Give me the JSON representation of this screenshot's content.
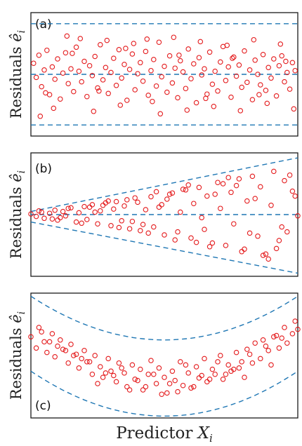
{
  "chart_data": [
    {
      "type": "scatter",
      "panel_label": "(a)",
      "ylabel": "Residuals ê_i",
      "xlabel": "",
      "xlim": [
        0,
        1
      ],
      "ylim": [
        -1.0,
        1.0
      ],
      "ticks": "none",
      "pattern": "constant variance",
      "guides": [
        {
          "kind": "horizontal",
          "y": 0.82
        },
        {
          "kind": "horizontal",
          "y": 0.0
        },
        {
          "kind": "horizontal",
          "y": -0.82
        }
      ],
      "point_color": "#e41a1c",
      "guide_color": "#1f77b4",
      "x": [
        0.01,
        0.02,
        0.03,
        0.04,
        0.05,
        0.06,
        0.07,
        0.08,
        0.09,
        0.1,
        0.11,
        0.12,
        0.13,
        0.14,
        0.15,
        0.16,
        0.17,
        0.18,
        0.19,
        0.2,
        0.21,
        0.22,
        0.23,
        0.24,
        0.25,
        0.26,
        0.27,
        0.28,
        0.29,
        0.3,
        0.31,
        0.32,
        0.33,
        0.34,
        0.35,
        0.36,
        0.37,
        0.38,
        0.39,
        0.4,
        0.41,
        0.42,
        0.43,
        0.44,
        0.45,
        0.46,
        0.47,
        0.48,
        0.49,
        0.5,
        0.51,
        0.52,
        0.53,
        0.54,
        0.55,
        0.56,
        0.57,
        0.58,
        0.59,
        0.6,
        0.61,
        0.62,
        0.63,
        0.64,
        0.65,
        0.66,
        0.67,
        0.68,
        0.69,
        0.7,
        0.71,
        0.72,
        0.73,
        0.74,
        0.75,
        0.76,
        0.77,
        0.78,
        0.79,
        0.8,
        0.81,
        0.82,
        0.83,
        0.84,
        0.85,
        0.86,
        0.87,
        0.88,
        0.89,
        0.9,
        0.91,
        0.92,
        0.93,
        0.94,
        0.95,
        0.96,
        0.97,
        0.98,
        0.99,
        0.035,
        0.085,
        0.135,
        0.185,
        0.235,
        0.285,
        0.335,
        0.385,
        0.435,
        0.485,
        0.535,
        0.585,
        0.635,
        0.685,
        0.735,
        0.785,
        0.835,
        0.885,
        0.935,
        0.985,
        0.055,
        0.155,
        0.255,
        0.355,
        0.455,
        0.555,
        0.655,
        0.755,
        0.855,
        0.955
      ],
      "y": [
        0.18,
        -0.05,
        0.31,
        -0.2,
        0.07,
        0.39,
        -0.33,
        0.12,
        -0.08,
        0.25,
        -0.4,
        0.02,
        0.35,
        -0.15,
        0.09,
        -0.28,
        0.44,
        0.05,
        -0.12,
        0.21,
        -0.36,
        0.14,
        -0.02,
        0.29,
        -0.22,
        0.48,
        -0.09,
        0.11,
        -0.31,
        0.03,
        0.26,
        -0.18,
        0.4,
        -0.06,
        0.16,
        -0.42,
        0.08,
        0.33,
        -0.25,
        0.01,
        0.19,
        -0.11,
        0.37,
        -0.34,
        0.06,
        0.24,
        -0.19,
        0.52,
        -0.04,
        0.13,
        -0.29,
        0.3,
        -0.14,
        0.1,
        -0.38,
        0.22,
        0.04,
        -0.23,
        0.41,
        -0.07,
        0.17,
        -0.46,
        0.27,
        -0.01,
        0.09,
        -0.32,
        0.36,
        -0.16,
        0.05,
        -0.27,
        0.2,
        0.45,
        -0.1,
        0.12,
        -0.37,
        0.28,
        -0.03,
        0.15,
        -0.21,
        0.38,
        -0.13,
        0.07,
        -0.41,
        0.23,
        0.0,
        -0.17,
        0.32,
        -0.26,
        0.11,
        -0.06,
        0.25,
        -0.35,
        0.14,
        0.3,
        -0.12,
        0.03,
        -0.24,
        0.19,
        0.06,
        -0.68,
        -0.55,
        0.62,
        0.58,
        -0.6,
        0.55,
        -0.5,
        0.5,
        0.57,
        -0.64,
        0.6,
        -0.58,
        0.53,
        -0.52,
        0.47,
        -0.59,
        0.56,
        -0.47,
        0.49,
        -0.56,
        -0.3,
        0.34,
        -0.27,
        0.42,
        -0.44,
        0.31,
        -0.39,
        0.26,
        -0.33,
        0.21
      ]
    },
    {
      "type": "scatter",
      "panel_label": "(b)",
      "ylabel": "Residuals ê_i",
      "xlabel": "",
      "xlim": [
        0,
        1
      ],
      "ylim": [
        -1.0,
        1.0
      ],
      "ticks": "none",
      "pattern": "fan-shaped (increasing variance)",
      "guides": [
        {
          "kind": "line",
          "x": [
            0,
            1
          ],
          "y": [
            0.05,
            0.92
          ]
        },
        {
          "kind": "line",
          "x": [
            0,
            1
          ],
          "y": [
            0.0,
            0.0
          ]
        },
        {
          "kind": "line",
          "x": [
            0,
            1
          ],
          "y": [
            -0.12,
            -0.95
          ]
        }
      ],
      "point_color": "#e41a1c",
      "guide_color": "#1f77b4",
      "x": [
        0.0,
        0.02,
        0.04,
        0.05,
        0.07,
        0.09,
        0.1,
        0.12,
        0.13,
        0.15,
        0.17,
        0.18,
        0.2,
        0.21,
        0.23,
        0.25,
        0.26,
        0.28,
        0.3,
        0.31,
        0.33,
        0.35,
        0.36,
        0.38,
        0.4,
        0.41,
        0.43,
        0.45,
        0.46,
        0.48,
        0.5,
        0.51,
        0.53,
        0.55,
        0.56,
        0.58,
        0.6,
        0.61,
        0.63,
        0.65,
        0.66,
        0.68,
        0.7,
        0.71,
        0.73,
        0.75,
        0.76,
        0.78,
        0.8,
        0.81,
        0.83,
        0.85,
        0.86,
        0.88,
        0.9,
        0.91,
        0.93,
        0.95,
        0.96,
        0.98,
        1.0,
        0.03,
        0.08,
        0.14,
        0.19,
        0.24,
        0.29,
        0.34,
        0.39,
        0.44,
        0.49,
        0.54,
        0.59,
        0.64,
        0.69,
        0.74,
        0.79,
        0.84,
        0.89,
        0.94,
        0.99,
        0.11,
        0.22,
        0.32,
        0.42,
        0.52,
        0.62,
        0.72,
        0.82,
        0.92,
        0.97,
        0.57,
        0.67,
        0.77,
        0.87,
        0.47,
        0.37,
        0.27
      ],
      "y": [
        0.01,
        -0.03,
        0.04,
        -0.06,
        0.02,
        0.07,
        -0.09,
        0.05,
        -0.02,
        0.11,
        -0.12,
        0.03,
        0.13,
        -0.08,
        0.16,
        -0.15,
        0.06,
        0.19,
        -0.18,
        0.09,
        -0.21,
        0.14,
        0.24,
        -0.11,
        0.2,
        -0.26,
        0.08,
        0.29,
        -0.2,
        0.12,
        -0.33,
        0.25,
        0.35,
        -0.28,
        0.04,
        0.4,
        -0.38,
        0.18,
        0.44,
        -0.24,
        0.3,
        -0.46,
        0.52,
        0.1,
        -0.5,
        0.36,
        -0.15,
        0.58,
        -0.56,
        0.22,
        0.62,
        -0.35,
        0.45,
        -0.64,
        0.15,
        0.7,
        -0.42,
        0.55,
        -0.28,
        0.38,
        -0.02,
        0.06,
        -0.07,
        0.1,
        -0.14,
        0.04,
        0.22,
        -0.1,
        0.27,
        -0.3,
        0.16,
        -0.41,
        0.48,
        -0.05,
        0.33,
        0.6,
        -0.6,
        0.26,
        -0.72,
        -0.2,
        0.3,
        -0.05,
        0.12,
        0.21,
        -0.16,
        0.33,
        -0.45,
        0.5,
        -0.3,
        -0.55,
        0.64,
        0.41,
        -0.52,
        0.47,
        -0.66,
        0.37,
        -0.23,
        0.15
      ]
    },
    {
      "type": "scatter",
      "panel_label": "(c)",
      "ylabel": "Residuals ê_i",
      "xlabel": "Predictor X_i",
      "xlim": [
        0,
        1
      ],
      "ylim": [
        -1.0,
        1.0
      ],
      "ticks": "none",
      "pattern": "curvature (U-shaped trend)",
      "guides": [
        {
          "kind": "quadratic",
          "vertex_x": 0.5,
          "vertex_y": 0.25,
          "end_y": 0.95
        },
        {
          "kind": "quadratic",
          "vertex_x": 0.5,
          "vertex_y": -0.97,
          "end_y": -0.25
        }
      ],
      "point_color": "#e41a1c",
      "guide_color": "#1f77b4",
      "x": [
        0.0,
        0.02,
        0.03,
        0.05,
        0.06,
        0.08,
        0.09,
        0.11,
        0.12,
        0.14,
        0.15,
        0.17,
        0.18,
        0.2,
        0.21,
        0.23,
        0.24,
        0.26,
        0.27,
        0.29,
        0.3,
        0.32,
        0.33,
        0.35,
        0.36,
        0.38,
        0.39,
        0.41,
        0.42,
        0.44,
        0.45,
        0.47,
        0.48,
        0.5,
        0.51,
        0.53,
        0.54,
        0.56,
        0.57,
        0.59,
        0.6,
        0.62,
        0.63,
        0.65,
        0.66,
        0.68,
        0.69,
        0.71,
        0.72,
        0.74,
        0.75,
        0.77,
        0.78,
        0.8,
        0.81,
        0.83,
        0.84,
        0.86,
        0.87,
        0.89,
        0.9,
        0.92,
        0.93,
        0.95,
        0.96,
        0.98,
        0.99,
        0.04,
        0.1,
        0.16,
        0.22,
        0.28,
        0.34,
        0.4,
        0.46,
        0.52,
        0.58,
        0.64,
        0.7,
        0.76,
        0.82,
        0.88,
        0.94,
        1.0,
        0.07,
        0.19,
        0.31,
        0.43,
        0.55,
        0.67,
        0.79,
        0.91,
        0.25,
        0.49,
        0.37,
        0.61,
        0.73,
        0.13
      ],
      "y": [
        0.3,
        0.12,
        0.45,
        0.22,
        0.05,
        0.35,
        -0.02,
        0.25,
        0.1,
        -0.12,
        0.18,
        0.02,
        -0.2,
        0.08,
        -0.1,
        -0.3,
        0.0,
        -0.18,
        -0.35,
        -0.05,
        -0.25,
        -0.42,
        -0.12,
        -0.28,
        -0.5,
        -0.15,
        -0.38,
        -0.22,
        -0.55,
        -0.3,
        -0.08,
        -0.45,
        -0.2,
        -0.35,
        -0.6,
        -0.25,
        -0.4,
        -0.1,
        -0.48,
        -0.28,
        -0.52,
        -0.18,
        -0.36,
        -0.05,
        -0.42,
        -0.22,
        -0.3,
        0.0,
        -0.38,
        -0.15,
        -0.25,
        0.05,
        -0.2,
        -0.35,
        0.1,
        -0.12,
        0.2,
        -0.05,
        0.25,
        0.08,
        -0.15,
        0.32,
        0.12,
        0.45,
        0.2,
        0.35,
        0.55,
        0.38,
        0.15,
        0.0,
        -0.1,
        -0.28,
        -0.2,
        -0.4,
        -0.3,
        -0.45,
        -0.15,
        -0.32,
        -0.1,
        -0.22,
        0.02,
        0.15,
        0.28,
        0.42,
        0.22,
        -0.05,
        -0.32,
        -0.5,
        -0.58,
        -0.38,
        -0.1,
        0.3,
        -0.45,
        -0.62,
        -0.55,
        -0.5,
        -0.3,
        0.08
      ]
    }
  ]
}
